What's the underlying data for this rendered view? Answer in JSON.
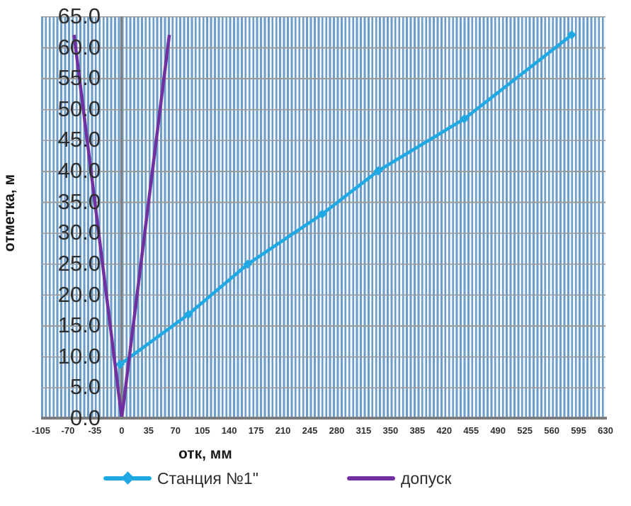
{
  "chart_data": {
    "type": "line",
    "title": "",
    "xlabel": "отк, мм",
    "ylabel": "отметка, м",
    "xlim": [
      -105,
      630
    ],
    "ylim": [
      0,
      65
    ],
    "xticks": [
      "-105",
      "-70",
      "-35",
      "0",
      "35",
      "70",
      "105",
      "140",
      "175",
      "210",
      "245",
      "280",
      "315",
      "350",
      "385",
      "420",
      "455",
      "490",
      "525",
      "560",
      "595",
      "630"
    ],
    "yticks": [
      "0.0",
      "5.0",
      "10.0",
      "15.0",
      "20.0",
      "25.0",
      "30.0",
      "35.0",
      "40.0",
      "45.0",
      "50.0",
      "55.0",
      "60.0",
      "65.0"
    ],
    "grid": {
      "vertical_minor_interval": 5,
      "horizontal_major_interval": 5,
      "zero_line_x": 0,
      "grid_on": true
    },
    "legend_position": "bottom",
    "series": [
      {
        "name": "Станция №1\"",
        "color": "#1FA8E2",
        "marker": "diamond",
        "line_width": 4.5,
        "points": [
          [
            -2,
            8.7
          ],
          [
            87,
            16.8
          ],
          [
            164,
            24.9
          ],
          [
            261,
            33.0
          ],
          [
            334,
            40.0
          ],
          [
            446,
            48.4
          ],
          [
            586,
            62.0
          ]
        ]
      },
      {
        "name": "допуск",
        "color": "#7030A0",
        "marker": "none",
        "line_width": 4.5,
        "points": [
          [
            -62,
            62
          ],
          [
            0,
            0
          ],
          [
            62,
            62
          ]
        ]
      }
    ],
    "colors": {
      "stripe_line": "#6C9CC7",
      "stripe_gap": "#F2F8FC",
      "grid_gray": "#9B9B9B",
      "axis_gray": "#7B7B7B",
      "text": "#2E2E2E"
    }
  }
}
